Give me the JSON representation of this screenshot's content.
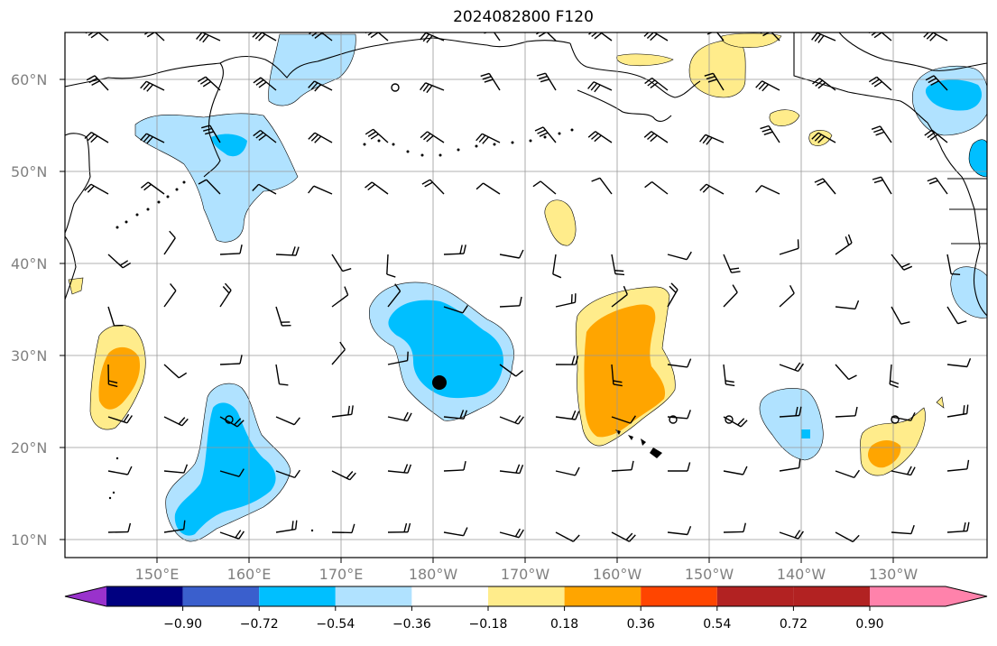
{
  "figure": {
    "title": "2024082800 F120"
  },
  "axes": {
    "lat_ticks": [
      "60°N",
      "50°N",
      "40°N",
      "30°N",
      "20°N",
      "10°N"
    ],
    "lon_ticks": [
      "150°E",
      "160°E",
      "170°E",
      "180°W",
      "170°W",
      "160°W",
      "150°W",
      "140°W",
      "130°W"
    ]
  },
  "colorbar": {
    "tick_labels": [
      "−0.90",
      "−0.72",
      "−0.54",
      "−0.36",
      "−0.18",
      "0.18",
      "0.36",
      "0.54",
      "0.72",
      "0.90"
    ],
    "colors": [
      "#9932CC",
      "#000080",
      "#3A5FCD",
      "#00BFFF",
      "#B0E2FF",
      "#FFFFFF",
      "#FFEC8B",
      "#FFA500",
      "#FF4500",
      "#B22222",
      "#FF82AB"
    ]
  },
  "chart_data": {
    "type": "heatmap",
    "title": "2024082800 F120",
    "lat_range": [
      8,
      65
    ],
    "lon_range": [
      140,
      240
    ],
    "lat_ticks": [
      60,
      50,
      40,
      30,
      20,
      10
    ],
    "lon_ticks": [
      150,
      160,
      170,
      180,
      190,
      200,
      210,
      220,
      230
    ],
    "levels": [
      -0.9,
      -0.72,
      -0.54,
      -0.36,
      -0.18,
      0.18,
      0.36,
      0.54,
      0.72,
      0.9
    ],
    "grid": true,
    "colorbar_location": "bottom"
  }
}
